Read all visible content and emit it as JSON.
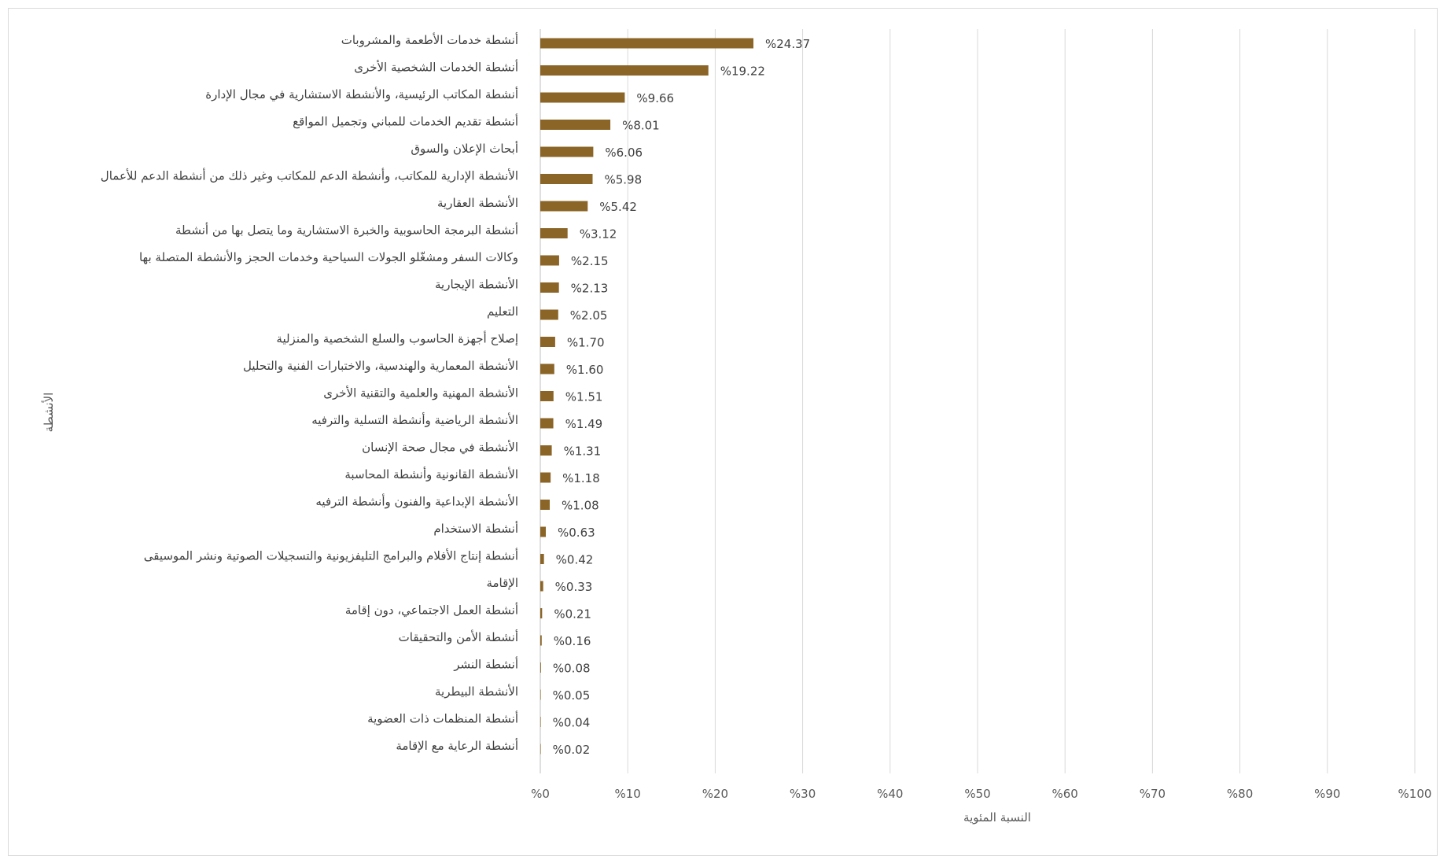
{
  "chart_data": {
    "type": "bar",
    "orientation": "horizontal",
    "xlabel": "النسبة المئوية",
    "ylabel": "الأنشطة",
    "xlim": [
      0,
      100
    ],
    "x_ticks": [
      0,
      10,
      20,
      30,
      40,
      50,
      60,
      70,
      80,
      90,
      100
    ],
    "x_tick_labels": [
      "%0",
      "%10",
      "%20",
      "%30",
      "%40",
      "%50",
      "%60",
      "%70",
      "%80",
      "%90",
      "%100"
    ],
    "grid": "vertical",
    "legend": "none",
    "bar_color": "#8B6527",
    "categories": [
      "أنشطة خدمات الأطعمة والمشروبات",
      "أنشطة الخدمات الشخصية الأخرى",
      "أنشطة المكاتب الرئيسية، والأنشطة الاستشارية في مجال الإدارة",
      "أنشطة تقديم الخدمات للمباني وتجميل المواقع",
      "أبحاث الإعلان والسوق",
      "الأنشطة الإدارية للمكاتب، وأنشطة الدعم للمكاتب وغير ذلك من أنشطة الدعم للأعمال",
      "الأنشطة العقارية",
      "أنشطة البرمجة الحاسوبية والخبرة الاستشارية وما يتصل بها من أنشطة",
      "وكالات السفر ومشغّلو الجولات السياحية وخدمات الحجز والأنشطة المتصلة بها",
      "الأنشطة الإيجارية",
      "التعليم",
      "إصلاح أجهزة الحاسوب والسلع الشخصية والمنزلية",
      "الأنشطة المعمارية والهندسية، والاختبارات الفنية والتحليل",
      "الأنشطة المهنية والعلمية والتقنية الأخرى",
      "الأنشطة الرياضية وأنشطة التسلية والترفيه",
      "الأنشطة في مجال صحة الإنسان",
      "الأنشطة القانونية وأنشطة المحاسبة",
      "الأنشطة الإبداعية والفنون وأنشطة الترفيه",
      "أنشطة الاستخدام",
      "أنشطة إنتاج الأفلام والبرامج التليفزيونية والتسجيلات الصوتية ونشر الموسيقى",
      "الإقامة",
      "أنشطة العمل الاجتماعي، دون إقامة",
      "أنشطة الأمن والتحقيقات",
      "أنشطة النشر",
      "الأنشطة البيطرية",
      "أنشطة المنظمات ذات العضوية",
      "أنشطة الرعاية مع الإقامة"
    ],
    "values": [
      24.37,
      19.22,
      9.66,
      8.01,
      6.06,
      5.98,
      5.42,
      3.12,
      2.15,
      2.13,
      2.05,
      1.7,
      1.6,
      1.51,
      1.49,
      1.31,
      1.18,
      1.08,
      0.63,
      0.42,
      0.33,
      0.21,
      0.16,
      0.08,
      0.05,
      0.04,
      0.02
    ],
    "data_labels": [
      "%24.37",
      "%19.22",
      "%9.66",
      "%8.01",
      "%6.06",
      "%5.98",
      "%5.42",
      "%3.12",
      "%2.15",
      "%2.13",
      "%2.05",
      "%1.70",
      "%1.60",
      "%1.51",
      "%1.49",
      "%1.31",
      "%1.18",
      "%1.08",
      "%0.63",
      "%0.42",
      "%0.33",
      "%0.21",
      "%0.16",
      "%0.08",
      "%0.05",
      "%0.04",
      "%0.02"
    ]
  }
}
